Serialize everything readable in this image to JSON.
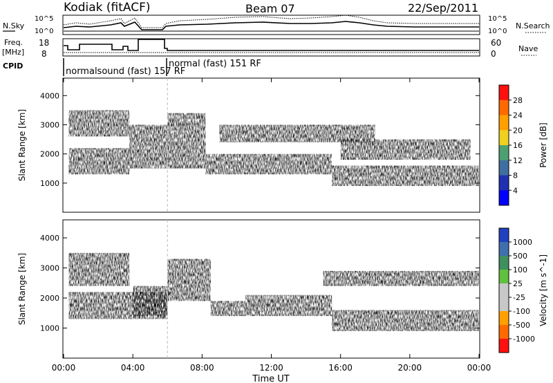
{
  "header": {
    "station": "Kodiak (fitACF)",
    "beam": "Beam 07",
    "date": "22/Sep/2011"
  },
  "summary_panels": {
    "nsky_label": "N.Sky",
    "nsearch_label": "N.Search",
    "freq_label_top": "Freq.",
    "freq_label_unit": "[MHz]",
    "nave_label": "Nave",
    "cpid_label": "CPID",
    "nsky_ticks": [
      "10^5",
      "10^0"
    ],
    "nsearch_ticks": [
      "10^5",
      "10^0"
    ],
    "freq_ticks": [
      "18",
      "8"
    ],
    "nave_ticks": [
      "60",
      "0"
    ],
    "cpid_modes": [
      {
        "label": "normalsound (fast) 157 RF",
        "start_ut": 0,
        "end_ut": 6
      },
      {
        "label": "normal (fast) 151 RF",
        "start_ut": 6,
        "end_ut": 24
      }
    ]
  },
  "time_axis": {
    "xlabel": "Time UT",
    "tick_labels": [
      "00:00",
      "04:00",
      "08:00",
      "12:00",
      "16:00",
      "20:00",
      "00:00"
    ]
  },
  "chart_data": [
    {
      "type": "heatmap",
      "title": "Power",
      "x": "time_ut_hours",
      "xlim": [
        0,
        24
      ],
      "ylabel": "Slant Range [km]",
      "ylim": [
        0,
        4600
      ],
      "yticks": [
        1000,
        2000,
        3000,
        4000
      ],
      "colorbar": {
        "label": "Power [dB]",
        "tick_labels": [
          "28",
          "24",
          "20",
          "16",
          "12",
          "8",
          "4"
        ],
        "colors": [
          "#ff1010",
          "#ff6a00",
          "#ffa000",
          "#f0d020",
          "#4fa070",
          "#3f6f9f",
          "#2030b0",
          "#0000ff"
        ]
      },
      "echo_regions": [
        {
          "t": [
            0.3,
            3.8
          ],
          "range_km": [
            1300,
            2200
          ],
          "power_db": 24
        },
        {
          "t": [
            0.3,
            3.8
          ],
          "range_km": [
            2600,
            3500
          ],
          "power_db": 20
        },
        {
          "t": [
            3.8,
            6.0
          ],
          "range_km": [
            1500,
            3000
          ],
          "power_db": 22
        },
        {
          "t": [
            6.0,
            8.2
          ],
          "range_km": [
            1500,
            3400
          ],
          "power_db": 18
        },
        {
          "t": [
            8.2,
            15.5
          ],
          "range_km": [
            1300,
            2000
          ],
          "power_db": 22
        },
        {
          "t": [
            15.5,
            24.0
          ],
          "range_km": [
            900,
            1600
          ],
          "power_db": 20
        },
        {
          "t": [
            9.0,
            18.0
          ],
          "range_km": [
            2400,
            3000
          ],
          "power_db": 10
        },
        {
          "t": [
            16.0,
            23.5
          ],
          "range_km": [
            1800,
            2500
          ],
          "power_db": 8
        }
      ]
    },
    {
      "type": "heatmap",
      "title": "Velocity",
      "x": "time_ut_hours",
      "xlim": [
        0,
        24
      ],
      "ylabel": "Slant Range [km]",
      "ylim": [
        0,
        4600
      ],
      "yticks": [
        1000,
        2000,
        3000,
        4000
      ],
      "colorbar": {
        "label": "Velocity [m s^-1]",
        "tick_labels": [
          "1000",
          "500",
          "100",
          "25",
          "-25",
          "-100",
          "-500",
          "-1000"
        ],
        "colors": [
          "#2040c0",
          "#3f6faf",
          "#3f8f5f",
          "#60c040",
          "#c8c8c8",
          "#c8c8c8",
          "#ffa000",
          "#ff6a00",
          "#ff1010"
        ]
      },
      "echo_regions": [
        {
          "t": [
            0.3,
            6.0
          ],
          "range_km": [
            1300,
            2200
          ],
          "velocity_ms": 0
        },
        {
          "t": [
            0.3,
            3.8
          ],
          "range_km": [
            2400,
            3500
          ],
          "velocity_ms": -300
        },
        {
          "t": [
            4.0,
            6.0
          ],
          "range_km": [
            1400,
            2400
          ],
          "velocity_ms": 150
        },
        {
          "t": [
            6.0,
            8.5
          ],
          "range_km": [
            1900,
            3300
          ],
          "velocity_ms": 0
        },
        {
          "t": [
            8.5,
            10.5
          ],
          "range_km": [
            1400,
            1900
          ],
          "velocity_ms": 100
        },
        {
          "t": [
            10.5,
            15.5
          ],
          "range_km": [
            1400,
            2100
          ],
          "velocity_ms": -300
        },
        {
          "t": [
            15.5,
            24.0
          ],
          "range_km": [
            900,
            1600
          ],
          "velocity_ms": 0
        },
        {
          "t": [
            15.0,
            24.0
          ],
          "range_km": [
            2400,
            2900
          ],
          "velocity_ms": 0
        }
      ]
    }
  ]
}
